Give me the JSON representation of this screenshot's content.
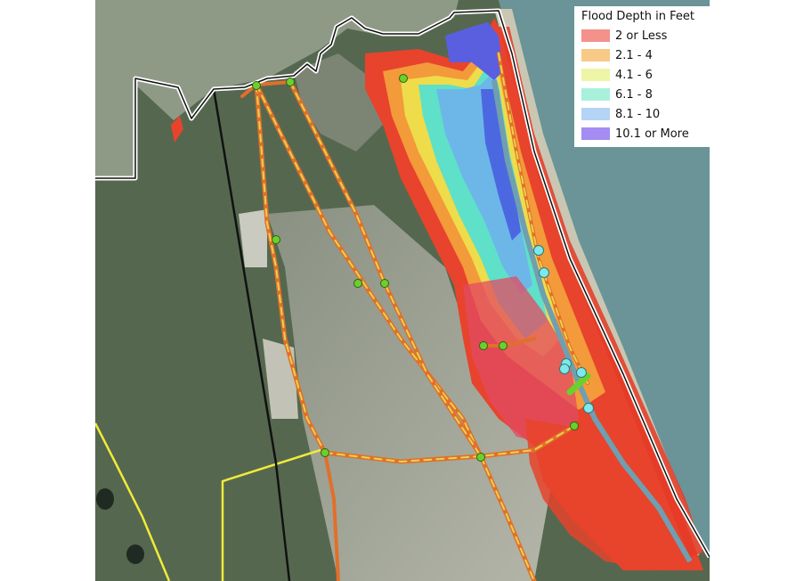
{
  "legend": {
    "title": "Flood Depth in Feet",
    "items": [
      {
        "label": "2 or Less",
        "color": "#f4918b"
      },
      {
        "label": "2.1 - 4",
        "color": "#f8c987"
      },
      {
        "label": "4.1 - 6",
        "color": "#eef5a6"
      },
      {
        "label": "6.1 - 8",
        "color": "#a8f0dc"
      },
      {
        "label": "8.1 - 10",
        "color": "#b4d4f6"
      },
      {
        "label": "10.1 or More",
        "color": "#a48cf2"
      }
    ]
  },
  "colors": {
    "land_forest": "#55684f",
    "land_urban": "#9ea294",
    "ocean": "#6a9497",
    "boundary": "#ffffff",
    "road_route": "#e26f2a",
    "road_dash": "#e8d34c",
    "rail": "#111111",
    "county_line": "#f2ea3a",
    "marker_green": "#6ad12c",
    "marker_cyan": "#7ee8ea"
  }
}
